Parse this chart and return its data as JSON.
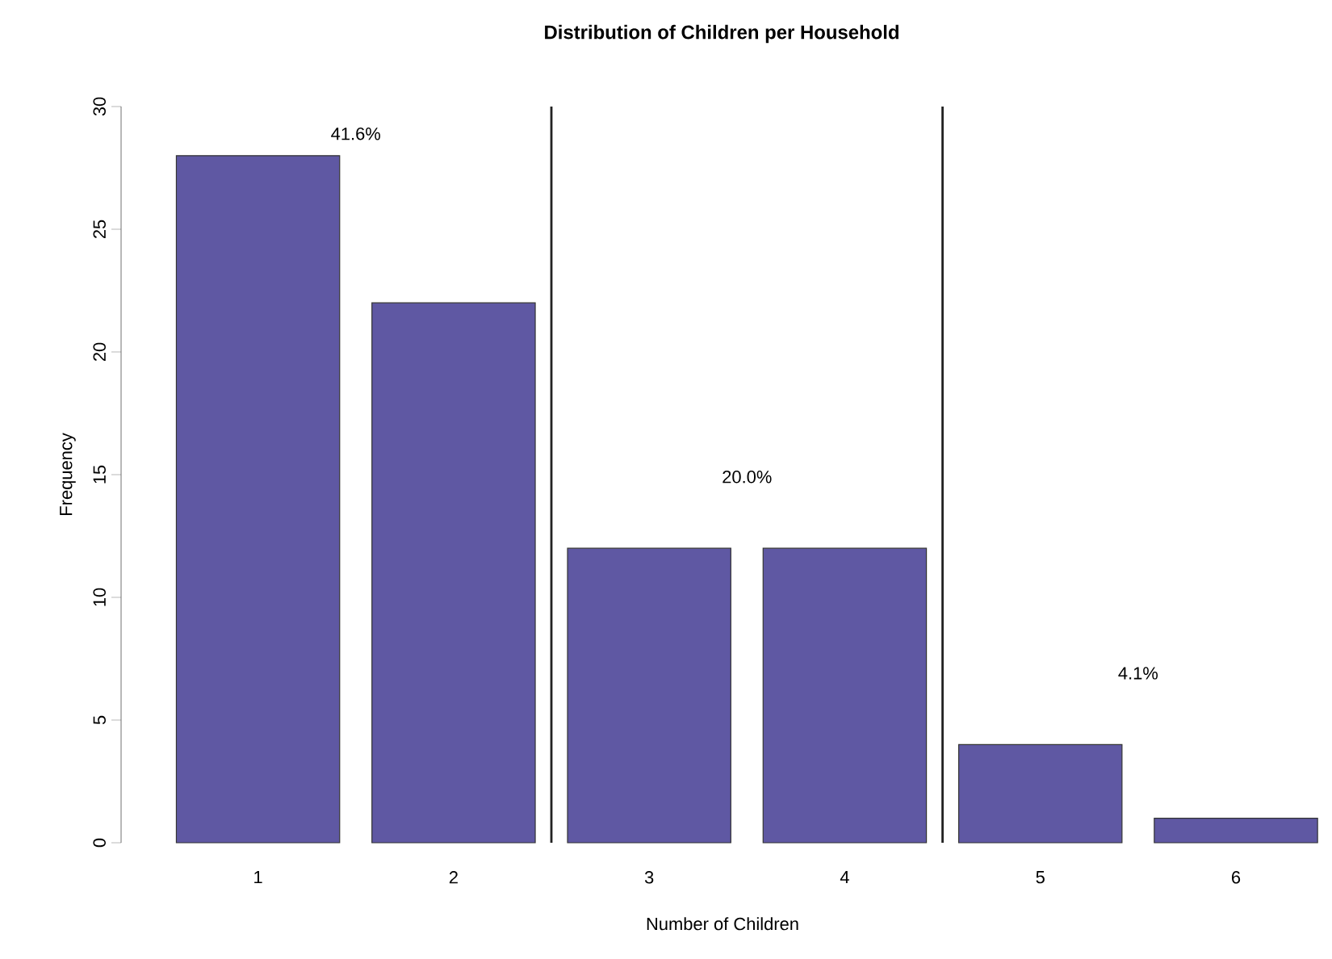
{
  "chart_data": {
    "type": "bar",
    "title": "Distribution of Children per Household",
    "xlabel": "Number of Children",
    "ylabel": "Frequency",
    "x": [
      1,
      2,
      3,
      4,
      5,
      6
    ],
    "values": [
      28,
      22,
      12,
      12,
      4,
      1
    ],
    "color": "#5f58a3",
    "xlim": [
      0.3,
      6.45
    ],
    "xticks": [
      1,
      2,
      3,
      4,
      5,
      6
    ],
    "ylim": [
      0,
      30
    ],
    "yticks": [
      0,
      5,
      10,
      15,
      20,
      25,
      30
    ],
    "ref_lines": [
      {
        "axis": "x",
        "value": 2.5,
        "color": "#222222"
      },
      {
        "axis": "x",
        "value": 4.5,
        "color": "#222222"
      }
    ],
    "annotations": [
      "41.6%",
      "20.0%",
      "4.1%"
    ]
  }
}
